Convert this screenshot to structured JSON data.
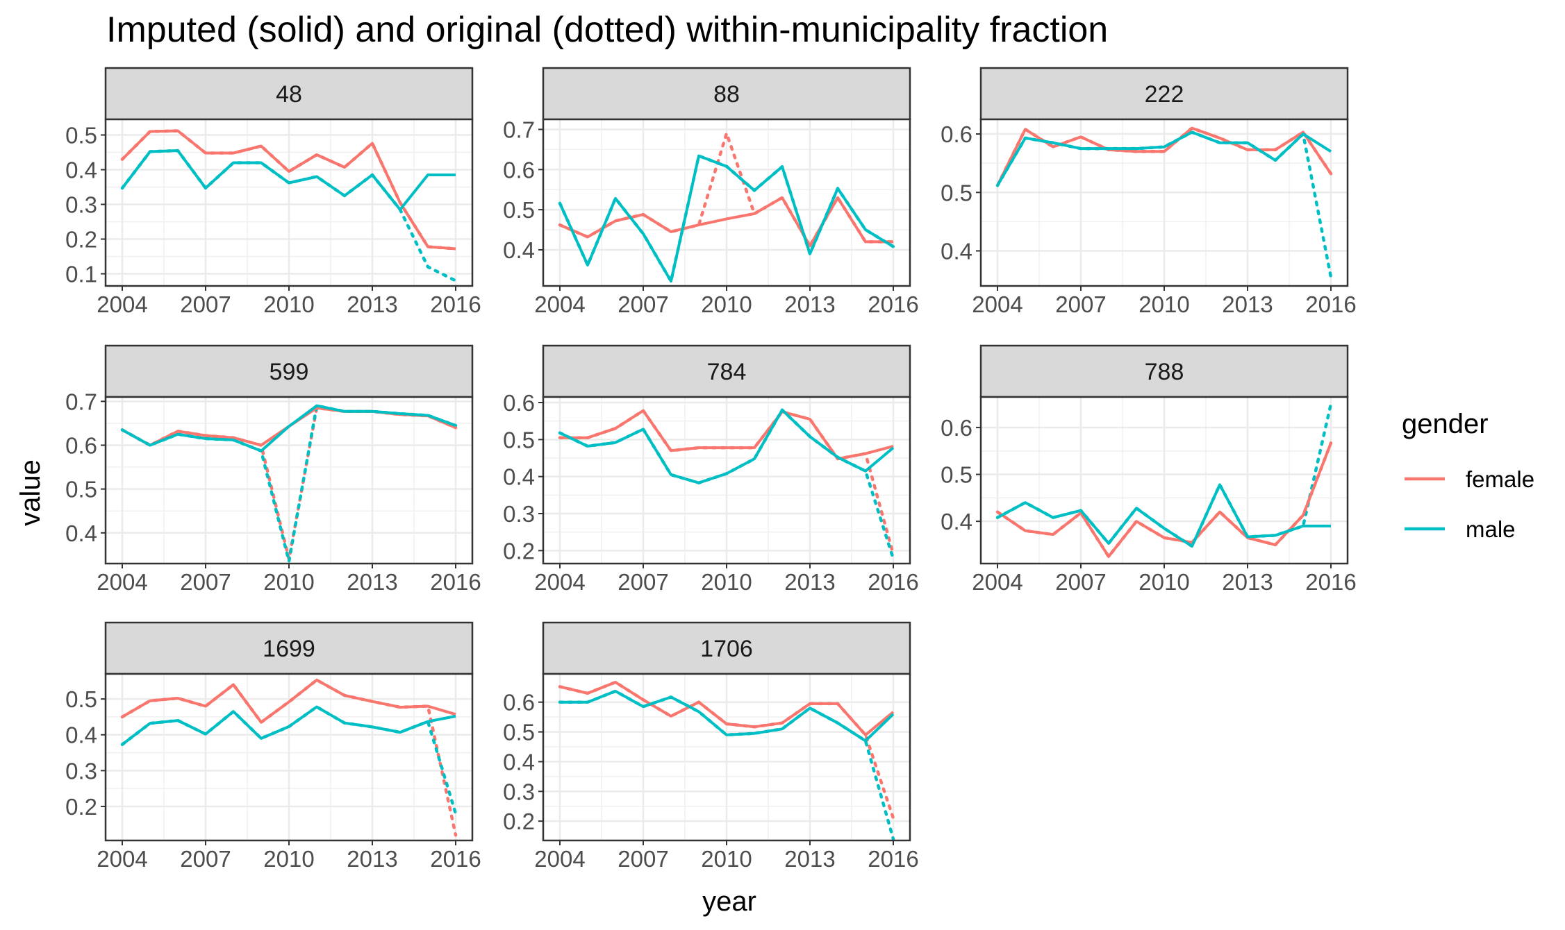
{
  "chart_data": {
    "type": "line",
    "title": "Imputed (solid) and original (dotted) within-municipality fraction",
    "xlabel": "year",
    "ylabel": "value",
    "x": [
      2004,
      2005,
      2006,
      2007,
      2008,
      2009,
      2010,
      2011,
      2012,
      2013,
      2014,
      2015,
      2016
    ],
    "x_ticks": [
      2004,
      2007,
      2010,
      2013,
      2016
    ],
    "xlim": [
      2003.4,
      2016.6
    ],
    "grid": true,
    "legend": {
      "title": "gender",
      "position": "right",
      "entries": [
        {
          "label": "female",
          "color": "#F8766D"
        },
        {
          "label": "male",
          "color": "#00BFC4"
        }
      ]
    },
    "line_styles": {
      "imputed": "solid",
      "original": "dotted"
    },
    "panels": [
      {
        "label": "48",
        "ylim": [
          0.065,
          0.545
        ],
        "y_ticks": [
          0.1,
          0.2,
          0.3,
          0.4,
          0.5
        ],
        "y_tick_labels": [
          "0.1",
          "0.2",
          "0.3",
          "0.4",
          "0.5"
        ],
        "series": [
          {
            "name": "female",
            "imputed": [
              0.43,
              0.51,
              0.512,
              0.448,
              0.448,
              0.468,
              0.395,
              0.443,
              0.407,
              0.476,
              0.305,
              0.178,
              0.172
            ],
            "original": [
              0.43,
              0.51,
              0.512,
              0.448,
              0.448,
              0.468,
              0.395,
              0.443,
              0.407,
              0.476,
              0.305,
              0.178,
              0.172
            ]
          },
          {
            "name": "male",
            "imputed": [
              0.347,
              0.452,
              0.455,
              0.347,
              0.42,
              0.42,
              0.362,
              0.38,
              0.325,
              0.385,
              0.285,
              0.385,
              0.385
            ],
            "original": [
              0.347,
              0.452,
              0.455,
              0.347,
              0.42,
              0.42,
              0.362,
              0.38,
              0.325,
              0.385,
              0.285,
              0.12,
              0.08
            ]
          }
        ]
      },
      {
        "label": "88",
        "ylim": [
          0.31,
          0.725
        ],
        "y_ticks": [
          0.4,
          0.5,
          0.6,
          0.7
        ],
        "y_tick_labels": [
          "0.4",
          "0.5",
          "0.6",
          "0.7"
        ],
        "series": [
          {
            "name": "female",
            "imputed": [
              0.462,
              0.432,
              0.472,
              0.488,
              0.445,
              0.462,
              0.477,
              0.49,
              0.53,
              0.41,
              0.53,
              0.42,
              0.42
            ],
            "original": [
              0.462,
              0.432,
              0.472,
              0.488,
              0.445,
              0.462,
              0.69,
              0.49,
              0.53,
              0.41,
              0.53,
              0.42,
              0.42
            ]
          },
          {
            "name": "male",
            "imputed": [
              0.516,
              0.362,
              0.528,
              0.44,
              0.322,
              0.634,
              0.608,
              0.548,
              0.607,
              0.39,
              0.553,
              0.45,
              0.408
            ],
            "original": [
              0.516,
              0.362,
              0.528,
              0.44,
              0.322,
              0.634,
              0.608,
              0.548,
              0.607,
              0.39,
              0.553,
              0.45,
              0.408
            ]
          }
        ]
      },
      {
        "label": "222",
        "ylim": [
          0.34,
          0.625
        ],
        "y_ticks": [
          0.4,
          0.5,
          0.6
        ],
        "y_tick_labels": [
          "0.4",
          "0.5",
          "0.6"
        ],
        "series": [
          {
            "name": "female",
            "imputed": [
              0.512,
              0.608,
              0.578,
              0.595,
              0.573,
              0.57,
              0.57,
              0.61,
              0.593,
              0.573,
              0.573,
              0.603,
              0.532
            ],
            "original": [
              0.512,
              0.608,
              0.578,
              0.595,
              0.573,
              0.57,
              0.57,
              0.61,
              0.593,
              0.573,
              0.573,
              0.603,
              0.532
            ]
          },
          {
            "name": "male",
            "imputed": [
              0.512,
              0.593,
              0.585,
              0.575,
              0.575,
              0.575,
              0.578,
              0.603,
              0.585,
              0.585,
              0.555,
              0.6,
              0.57
            ],
            "original": [
              0.512,
              0.593,
              0.585,
              0.575,
              0.575,
              0.575,
              0.578,
              0.603,
              0.585,
              0.585,
              0.555,
              0.6,
              0.355
            ]
          }
        ]
      },
      {
        "label": "599",
        "ylim": [
          0.33,
          0.71
        ],
        "y_ticks": [
          0.4,
          0.5,
          0.6,
          0.7
        ],
        "y_tick_labels": [
          "0.4",
          "0.5",
          "0.6",
          "0.7"
        ],
        "series": [
          {
            "name": "female",
            "imputed": [
              0.635,
              0.6,
              0.632,
              0.622,
              0.617,
              0.6,
              0.643,
              0.685,
              0.677,
              0.677,
              0.67,
              0.667,
              0.64
            ],
            "original": [
              0.635,
              0.6,
              0.632,
              0.622,
              0.617,
              0.6,
              0.34,
              0.685,
              0.677,
              0.677,
              0.67,
              0.667,
              0.64
            ]
          },
          {
            "name": "male",
            "imputed": [
              0.635,
              0.6,
              0.625,
              0.615,
              0.612,
              0.587,
              0.643,
              0.69,
              0.677,
              0.677,
              0.672,
              0.668,
              0.645
            ],
            "original": [
              0.635,
              0.6,
              0.625,
              0.615,
              0.612,
              0.587,
              0.335,
              0.69,
              0.677,
              0.677,
              0.672,
              0.668,
              0.645
            ]
          }
        ]
      },
      {
        "label": "784",
        "ylim": [
          0.165,
          0.615
        ],
        "y_ticks": [
          0.2,
          0.3,
          0.4,
          0.5,
          0.6
        ],
        "y_tick_labels": [
          "0.2",
          "0.3",
          "0.4",
          "0.5",
          "0.6"
        ],
        "series": [
          {
            "name": "female",
            "imputed": [
              0.505,
              0.505,
              0.53,
              0.578,
              0.47,
              0.478,
              0.478,
              0.478,
              0.575,
              0.555,
              0.448,
              0.462,
              0.482
            ],
            "original": [
              0.505,
              0.505,
              0.53,
              0.578,
              0.47,
              0.478,
              0.478,
              0.478,
              0.575,
              0.555,
              0.448,
              0.462,
              0.19
            ]
          },
          {
            "name": "male",
            "imputed": [
              0.518,
              0.482,
              0.492,
              0.528,
              0.405,
              0.383,
              0.408,
              0.448,
              0.58,
              0.508,
              0.452,
              0.415,
              0.478
            ],
            "original": [
              0.518,
              0.482,
              0.492,
              0.528,
              0.405,
              0.383,
              0.408,
              0.448,
              0.58,
              0.508,
              0.452,
              0.415,
              0.178
            ]
          }
        ]
      },
      {
        "label": "788",
        "ylim": [
          0.31,
          0.665
        ],
        "y_ticks": [
          0.4,
          0.5,
          0.6
        ],
        "y_tick_labels": [
          "0.4",
          "0.5",
          "0.6"
        ],
        "series": [
          {
            "name": "female",
            "imputed": [
              0.42,
              0.38,
              0.372,
              0.418,
              0.325,
              0.4,
              0.365,
              0.355,
              0.42,
              0.365,
              0.35,
              0.413,
              0.567
            ],
            "original": [
              0.42,
              0.38,
              0.372,
              0.418,
              0.325,
              0.4,
              0.365,
              0.355,
              0.42,
              0.365,
              0.35,
              0.413,
              0.567
            ]
          },
          {
            "name": "male",
            "imputed": [
              0.408,
              0.44,
              0.408,
              0.423,
              0.353,
              0.428,
              0.385,
              0.347,
              0.478,
              0.367,
              0.37,
              0.39,
              0.39
            ],
            "original": [
              0.408,
              0.44,
              0.408,
              0.423,
              0.353,
              0.428,
              0.385,
              0.347,
              0.478,
              0.367,
              0.37,
              0.39,
              0.65
            ]
          }
        ]
      },
      {
        "label": "1699",
        "ylim": [
          0.105,
          0.57
        ],
        "y_ticks": [
          0.2,
          0.3,
          0.4,
          0.5
        ],
        "y_tick_labels": [
          "0.2",
          "0.3",
          "0.4",
          "0.5"
        ],
        "series": [
          {
            "name": "female",
            "imputed": [
              0.45,
              0.495,
              0.502,
              0.48,
              0.54,
              0.435,
              0.492,
              0.553,
              0.51,
              0.493,
              0.477,
              0.48,
              0.457
            ],
            "original": [
              0.45,
              0.495,
              0.502,
              0.48,
              0.54,
              0.435,
              0.492,
              0.553,
              0.51,
              0.493,
              0.477,
              0.48,
              0.12
            ]
          },
          {
            "name": "male",
            "imputed": [
              0.373,
              0.432,
              0.44,
              0.402,
              0.465,
              0.39,
              0.423,
              0.478,
              0.433,
              0.422,
              0.407,
              0.437,
              0.452
            ],
            "original": [
              0.373,
              0.432,
              0.44,
              0.402,
              0.465,
              0.39,
              0.423,
              0.478,
              0.433,
              0.422,
              0.407,
              0.437,
              0.18
            ]
          }
        ]
      },
      {
        "label": "1706",
        "ylim": [
          0.135,
          0.695
        ],
        "y_ticks": [
          0.2,
          0.3,
          0.4,
          0.5,
          0.6
        ],
        "y_tick_labels": [
          "0.2",
          "0.3",
          "0.4",
          "0.5",
          "0.6"
        ],
        "series": [
          {
            "name": "female",
            "imputed": [
              0.652,
              0.63,
              0.667,
              0.608,
              0.553,
              0.6,
              0.527,
              0.517,
              0.53,
              0.595,
              0.595,
              0.49,
              0.567
            ],
            "original": [
              0.652,
              0.63,
              0.667,
              0.608,
              0.553,
              0.6,
              0.527,
              0.517,
              0.53,
              0.595,
              0.595,
              0.49,
              0.21
            ]
          },
          {
            "name": "male",
            "imputed": [
              0.6,
              0.6,
              0.637,
              0.585,
              0.617,
              0.568,
              0.49,
              0.495,
              0.51,
              0.58,
              0.53,
              0.47,
              0.56
            ],
            "original": [
              0.6,
              0.6,
              0.637,
              0.585,
              0.617,
              0.568,
              0.49,
              0.495,
              0.51,
              0.58,
              0.53,
              0.47,
              0.14
            ]
          }
        ]
      }
    ]
  }
}
